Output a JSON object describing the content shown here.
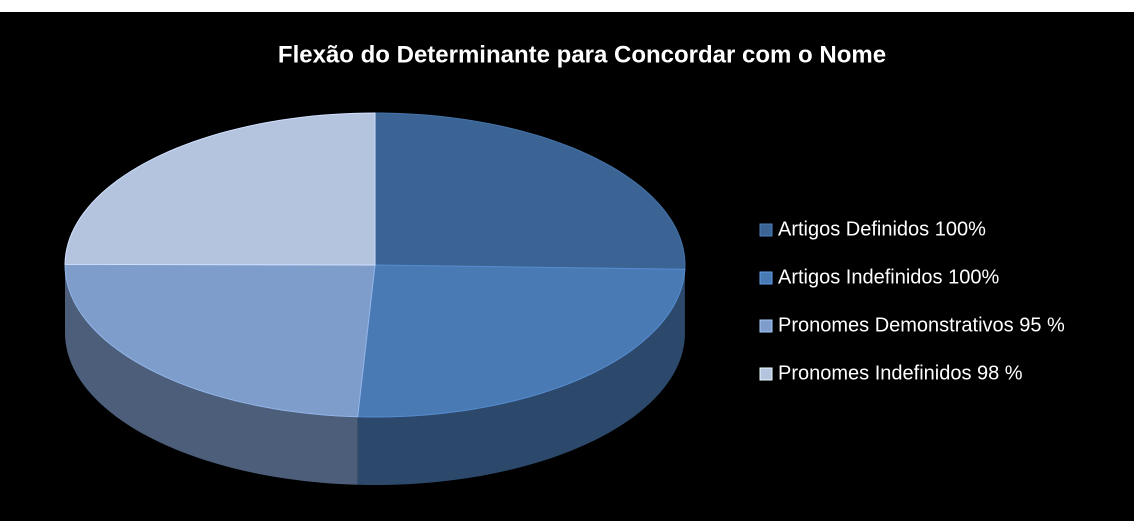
{
  "chart_data": {
    "type": "pie",
    "title": "Flexão do Determinante para Concordar com o Nome",
    "series": [
      {
        "name": "Artigos Definidos 100%",
        "color": "#3b6494",
        "values": [
          100
        ]
      },
      {
        "name": "Artigos Indefinidos 100%",
        "color": "#4a7ab4",
        "values": [
          100
        ]
      },
      {
        "name": "Pronomes Demonstrativos 95 %",
        "color": "#7f9dcb",
        "values": [
          95
        ]
      },
      {
        "name": "Pronomes Indefinidos 98 %",
        "color": "#b4c3de",
        "values": [
          98
        ]
      }
    ],
    "legend": "right"
  }
}
